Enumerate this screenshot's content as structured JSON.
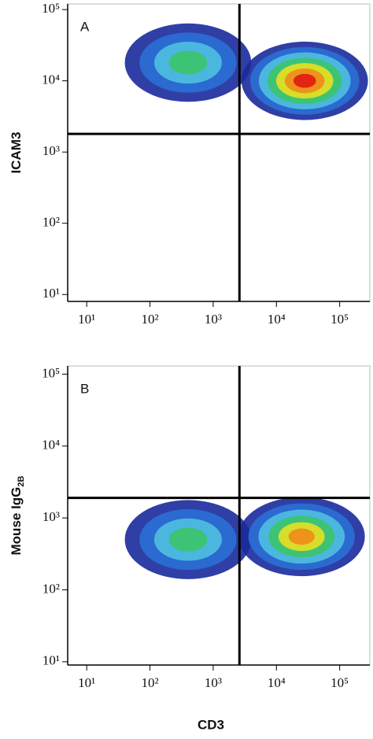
{
  "chart_data": [
    {
      "type": "density",
      "annotation": "A",
      "ylabel": {
        "text": "ICAM3"
      },
      "xscale": "log",
      "yscale": "log",
      "xlim": [
        5,
        300000
      ],
      "ylim": [
        8,
        120000
      ],
      "xticks": [
        {
          "value": 10,
          "label": "10¹"
        },
        {
          "value": 100,
          "label": "10²"
        },
        {
          "value": 1000,
          "label": "10³"
        },
        {
          "value": 10000,
          "label": "10⁴"
        },
        {
          "value": 100000,
          "label": "10⁵"
        }
      ],
      "yticks": [
        {
          "value": 10,
          "label": "10¹"
        },
        {
          "value": 100,
          "label": "10²"
        },
        {
          "value": 1000,
          "label": "10³"
        },
        {
          "value": 10000,
          "label": "10⁴"
        },
        {
          "value": 100000,
          "label": "10⁵"
        }
      ],
      "gate": {
        "x": 2600,
        "y": 1800
      },
      "populations": [
        {
          "x": 400,
          "y": 18000,
          "peak_color": "#3cc46a"
        },
        {
          "x": 28000,
          "y": 10000,
          "peak_color": "#e01a10"
        }
      ]
    },
    {
      "type": "density",
      "annotation": "B",
      "ylabel": {
        "text": "Mouse IgG",
        "sub": "2B"
      },
      "xlabel": "CD3",
      "xscale": "log",
      "yscale": "log",
      "xlim": [
        5,
        300000
      ],
      "ylim": [
        9,
        130000
      ],
      "xticks": [
        {
          "value": 10,
          "label": "10¹"
        },
        {
          "value": 100,
          "label": "10²"
        },
        {
          "value": 1000,
          "label": "10³"
        },
        {
          "value": 10000,
          "label": "10⁴"
        },
        {
          "value": 100000,
          "label": "10⁵"
        }
      ],
      "yticks": [
        {
          "value": 10,
          "label": "10¹"
        },
        {
          "value": 100,
          "label": "10²"
        },
        {
          "value": 1000,
          "label": "10³"
        },
        {
          "value": 10000,
          "label": "10⁴"
        },
        {
          "value": 100000,
          "label": "10⁵"
        }
      ],
      "gate": {
        "x": 2600,
        "y": 1900
      },
      "populations": [
        {
          "x": 400,
          "y": 500,
          "peak_color": "#3cc46a"
        },
        {
          "x": 25000,
          "y": 550,
          "peak_color": "#f08a1a"
        }
      ]
    }
  ]
}
